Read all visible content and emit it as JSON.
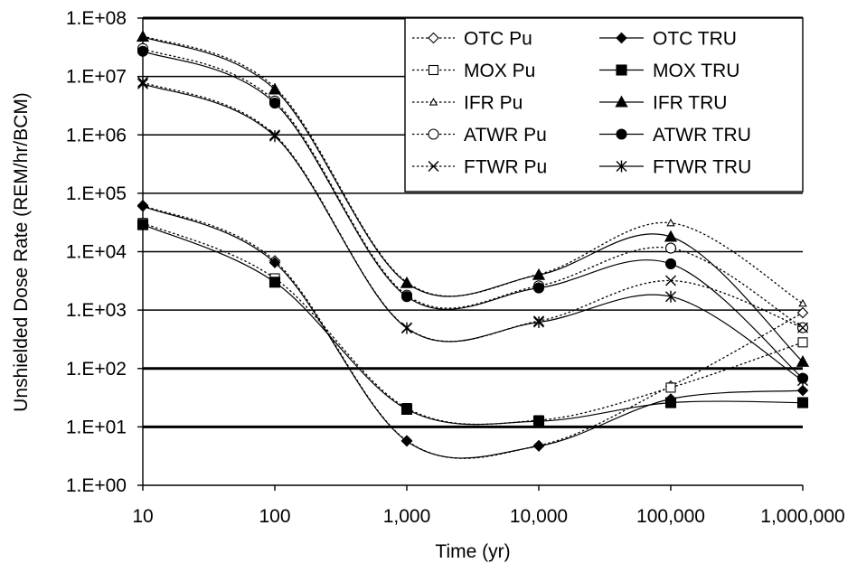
{
  "chart_data": {
    "type": "line",
    "xlabel": "Time (yr)",
    "ylabel": "Unshielded Dose Rate (REM/hr/BCM)",
    "x_scale": "log",
    "y_scale": "log",
    "xlim": [
      10,
      1000000
    ],
    "ylim": [
      1,
      100000000
    ],
    "x_ticks": [
      {
        "value": 10,
        "label": "10"
      },
      {
        "value": 100,
        "label": "100"
      },
      {
        "value": 1000,
        "label": "1,000"
      },
      {
        "value": 10000,
        "label": "10,000"
      },
      {
        "value": 100000,
        "label": "100,000"
      },
      {
        "value": 1000000,
        "label": "1,000,000"
      }
    ],
    "y_ticks": [
      {
        "value": 1,
        "label": "1.E+00"
      },
      {
        "value": 10,
        "label": "1.E+01"
      },
      {
        "value": 100,
        "label": "1.E+02"
      },
      {
        "value": 1000,
        "label": "1.E+03"
      },
      {
        "value": 10000,
        "label": "1.E+04"
      },
      {
        "value": 100000,
        "label": "1.E+05"
      },
      {
        "value": 1000000,
        "label": "1.E+06"
      },
      {
        "value": 10000000,
        "label": "1.E+07"
      },
      {
        "value": 100000000,
        "label": "1.E+08"
      }
    ],
    "grid": "horizontal",
    "legend_position": "top-right",
    "x": [
      10,
      100,
      1000,
      10000,
      100000,
      1000000
    ],
    "series": [
      {
        "name": "OTC Pu",
        "dashed": true,
        "marker": "diamond-open",
        "values": [
          62000,
          7000,
          5.8,
          4.8,
          50,
          900
        ]
      },
      {
        "name": "OTC TRU",
        "dashed": false,
        "marker": "diamond-filled",
        "values": [
          60000,
          6500,
          5.7,
          4.7,
          30,
          42
        ]
      },
      {
        "name": "MOX Pu",
        "dashed": true,
        "marker": "square-open",
        "values": [
          31000,
          3500,
          21,
          13,
          47,
          280
        ]
      },
      {
        "name": "MOX TRU",
        "dashed": false,
        "marker": "square-filled",
        "values": [
          29000,
          3000,
          20,
          12.5,
          26,
          26
        ]
      },
      {
        "name": "IFR Pu",
        "dashed": true,
        "marker": "triangle-open",
        "values": [
          50000000,
          6500000,
          3000,
          4100,
          31000,
          1300
        ]
      },
      {
        "name": "IFR TRU",
        "dashed": false,
        "marker": "triangle-filled",
        "values": [
          48000000,
          6000000,
          2900,
          4000,
          18000,
          130
        ]
      },
      {
        "name": "ATWR Pu",
        "dashed": true,
        "marker": "circle-open",
        "values": [
          30000000,
          3800000,
          1800,
          2600,
          11500,
          500
        ]
      },
      {
        "name": "ATWR TRU",
        "dashed": false,
        "marker": "circle-filled",
        "values": [
          27000000,
          3500000,
          1700,
          2400,
          6200,
          68
        ]
      },
      {
        "name": "FTWR Pu",
        "dashed": true,
        "marker": "x",
        "values": [
          8000000,
          1000000,
          500,
          650,
          3200,
          500
        ]
      },
      {
        "name": "FTWR TRU",
        "dashed": false,
        "marker": "star",
        "values": [
          7500000,
          950000,
          490,
          620,
          1700,
          62
        ]
      }
    ]
  }
}
